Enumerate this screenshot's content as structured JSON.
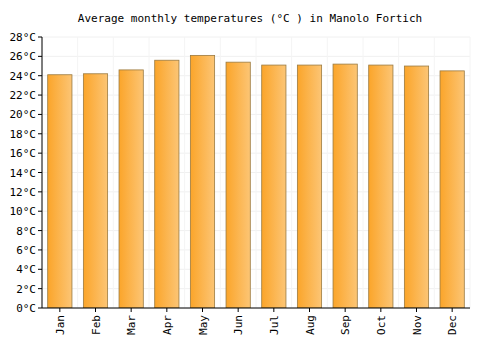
{
  "chart_data": {
    "type": "bar",
    "title": "Average monthly temperatures (°C ) in Manolo Fortich",
    "categories": [
      "Jan",
      "Feb",
      "Mar",
      "Apr",
      "May",
      "Jun",
      "Jul",
      "Aug",
      "Sep",
      "Oct",
      "Nov",
      "Dec"
    ],
    "values": [
      24.1,
      24.2,
      24.6,
      25.6,
      26.1,
      25.4,
      25.1,
      25.1,
      25.2,
      25.1,
      25.0,
      24.5
    ],
    "color": "#fba52a",
    "ylim": [
      0,
      28
    ],
    "yticks": [
      {
        "value": 0,
        "label": "0°C"
      },
      {
        "value": 2,
        "label": "2°C"
      },
      {
        "value": 4,
        "label": "4°C"
      },
      {
        "value": 6,
        "label": "6°C"
      },
      {
        "value": 8,
        "label": "8°C"
      },
      {
        "value": 10,
        "label": "10°C"
      },
      {
        "value": 12,
        "label": "12°C"
      },
      {
        "value": 14,
        "label": "14°C"
      },
      {
        "value": 16,
        "label": "16°C"
      },
      {
        "value": 18,
        "label": "18°C"
      },
      {
        "value": 20,
        "label": "20°C"
      },
      {
        "value": 22,
        "label": "22°C"
      },
      {
        "value": 24,
        "label": "24°C"
      },
      {
        "value": 26,
        "label": "26°C"
      },
      {
        "value": 28,
        "label": "28°C"
      }
    ],
    "grid": true
  }
}
